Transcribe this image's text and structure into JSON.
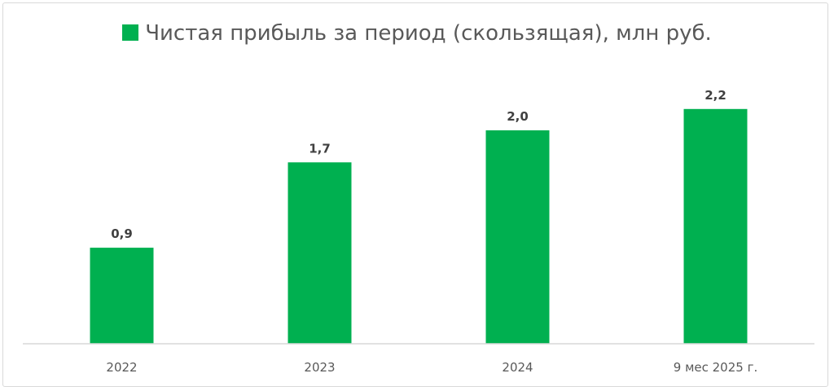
{
  "chart_data": {
    "type": "bar",
    "title": "",
    "legend": {
      "position": "top",
      "entries": [
        "Чистая прибыль за период (скользящая), млн руб."
      ]
    },
    "categories": [
      "2022",
      "2023",
      "2024",
      "9 мес 2025 г."
    ],
    "series": [
      {
        "name": "Чистая прибыль за период (скользящая), млн руб.",
        "values": [
          0.9,
          1.7,
          2.0,
          2.2
        ],
        "labels": [
          "0,9",
          "1,7",
          "2,0",
          "2,2"
        ],
        "color": "#00b050"
      }
    ],
    "xlabel": "",
    "ylabel": "",
    "ylim": [
      0,
      2.3
    ],
    "grid": false
  }
}
